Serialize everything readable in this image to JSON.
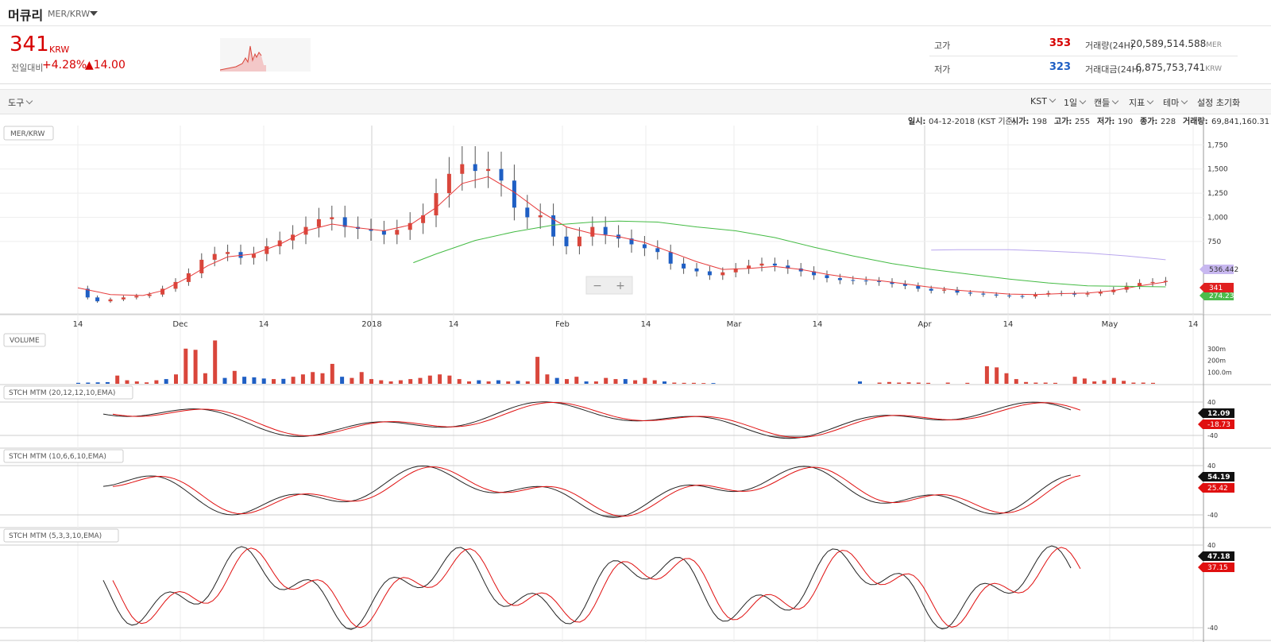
{
  "header": {
    "coin_name": "머큐리",
    "pair": "MER/KRW"
  },
  "ticker": {
    "price": "341",
    "unit": "KRW",
    "change_label": "전일대비",
    "change_pct": "+4.28%",
    "change_amt": "▲14.00",
    "high_label": "고가",
    "high": "353",
    "low_label": "저가",
    "low": "323",
    "vol_label": "거래량(24H)",
    "vol": "20,589,514.588",
    "vol_unit": "MER",
    "amt_label": "거래대금(24H)",
    "amt": "6,875,753,741",
    "amt_unit": "KRW"
  },
  "toolbar": {
    "tools": "도구",
    "items": [
      "KST",
      "1일",
      "캔들",
      "지표",
      "테마",
      "설정 초기화"
    ]
  },
  "info_line": {
    "date_label": "일시:",
    "date": "04-12-2018 (KST 기준)",
    "open_label": "시가:",
    "open": "198",
    "high_label": "고가:",
    "high": "255",
    "low_label": "저가:",
    "low": "190",
    "close_label": "종가:",
    "close": "228",
    "vol_label": "거래량:",
    "vol": "69,841,160.31"
  },
  "colors": {
    "up": "#d9463b",
    "down": "#1f5fc4",
    "ma_short": "#e63b3b",
    "ma_long": "#44bb44",
    "ma_xlong": "#b9a6ee",
    "stoch_main": "#222222",
    "stoch_signal": "#e01010"
  },
  "chart_data": {
    "type": "candlestick",
    "pair_label": "MER/KRW",
    "x_ticks": [
      "14",
      "Dec",
      "14",
      "2018",
      "14",
      "Feb",
      "14",
      "Mar",
      "14",
      "Apr",
      "14",
      "May",
      "14"
    ],
    "y_ticks": [
      "1,750",
      "1,500",
      "1,250",
      "1,000",
      "750"
    ],
    "price_tags": {
      "last": "341",
      "ma_green": "274.233",
      "ma_purple": "536.442"
    },
    "close_path": [
      [
        0,
        260
      ],
      [
        3,
        170
      ],
      [
        6,
        130
      ],
      [
        10,
        150
      ],
      [
        14,
        170
      ],
      [
        18,
        185
      ],
      [
        22,
        200
      ],
      [
        26,
        260
      ],
      [
        30,
        330
      ],
      [
        34,
        420
      ],
      [
        38,
        560
      ],
      [
        42,
        620
      ],
      [
        46,
        640
      ],
      [
        50,
        580
      ],
      [
        54,
        620
      ],
      [
        58,
        700
      ],
      [
        62,
        760
      ],
      [
        66,
        820
      ],
      [
        70,
        900
      ],
      [
        74,
        980
      ],
      [
        78,
        1000
      ],
      [
        82,
        900
      ],
      [
        86,
        880
      ],
      [
        90,
        860
      ],
      [
        94,
        820
      ],
      [
        98,
        870
      ],
      [
        102,
        940
      ],
      [
        106,
        1020
      ],
      [
        110,
        1250
      ],
      [
        114,
        1450
      ],
      [
        118,
        1550
      ],
      [
        122,
        1480
      ],
      [
        126,
        1500
      ],
      [
        130,
        1380
      ],
      [
        134,
        1100
      ],
      [
        138,
        1000
      ],
      [
        142,
        1020
      ],
      [
        146,
        800
      ],
      [
        150,
        700
      ],
      [
        154,
        800
      ],
      [
        158,
        900
      ],
      [
        162,
        820
      ],
      [
        166,
        780
      ],
      [
        170,
        720
      ],
      [
        174,
        680
      ],
      [
        178,
        640
      ],
      [
        182,
        520
      ],
      [
        186,
        470
      ],
      [
        190,
        440
      ],
      [
        194,
        400
      ],
      [
        198,
        430
      ],
      [
        202,
        470
      ],
      [
        206,
        500
      ],
      [
        210,
        520
      ],
      [
        214,
        500
      ],
      [
        218,
        470
      ],
      [
        222,
        440
      ],
      [
        226,
        400
      ],
      [
        230,
        370
      ],
      [
        234,
        350
      ],
      [
        238,
        345
      ],
      [
        242,
        340
      ],
      [
        246,
        330
      ],
      [
        250,
        310
      ],
      [
        254,
        290
      ],
      [
        258,
        260
      ],
      [
        262,
        240
      ],
      [
        266,
        250
      ],
      [
        270,
        220
      ],
      [
        274,
        210
      ],
      [
        278,
        200
      ],
      [
        282,
        190
      ],
      [
        286,
        185
      ],
      [
        290,
        180
      ],
      [
        294,
        200
      ],
      [
        298,
        215
      ],
      [
        302,
        210
      ],
      [
        306,
        200
      ],
      [
        310,
        210
      ],
      [
        314,
        225
      ],
      [
        318,
        250
      ],
      [
        322,
        290
      ],
      [
        326,
        320
      ],
      [
        330,
        330
      ],
      [
        334,
        341
      ]
    ],
    "ma_short_path": [
      [
        0,
        270
      ],
      [
        10,
        200
      ],
      [
        20,
        190
      ],
      [
        26,
        240
      ],
      [
        34,
        380
      ],
      [
        40,
        500
      ],
      [
        46,
        590
      ],
      [
        54,
        620
      ],
      [
        62,
        720
      ],
      [
        70,
        860
      ],
      [
        78,
        930
      ],
      [
        86,
        890
      ],
      [
        94,
        860
      ],
      [
        102,
        920
      ],
      [
        110,
        1100
      ],
      [
        118,
        1350
      ],
      [
        126,
        1420
      ],
      [
        134,
        1260
      ],
      [
        142,
        1060
      ],
      [
        150,
        900
      ],
      [
        158,
        830
      ],
      [
        166,
        800
      ],
      [
        174,
        740
      ],
      [
        182,
        640
      ],
      [
        190,
        540
      ],
      [
        198,
        460
      ],
      [
        206,
        470
      ],
      [
        214,
        490
      ],
      [
        222,
        460
      ],
      [
        230,
        410
      ],
      [
        238,
        370
      ],
      [
        246,
        345
      ],
      [
        254,
        310
      ],
      [
        262,
        275
      ],
      [
        270,
        245
      ],
      [
        278,
        225
      ],
      [
        286,
        205
      ],
      [
        294,
        200
      ],
      [
        302,
        210
      ],
      [
        310,
        215
      ],
      [
        318,
        240
      ],
      [
        326,
        290
      ],
      [
        334,
        330
      ]
    ],
    "ma_long_path": [
      [
        103,
        530
      ],
      [
        110,
        620
      ],
      [
        122,
        760
      ],
      [
        134,
        850
      ],
      [
        146,
        920
      ],
      [
        158,
        950
      ],
      [
        166,
        960
      ],
      [
        178,
        950
      ],
      [
        190,
        900
      ],
      [
        202,
        860
      ],
      [
        214,
        790
      ],
      [
        226,
        690
      ],
      [
        238,
        600
      ],
      [
        250,
        520
      ],
      [
        262,
        460
      ],
      [
        274,
        410
      ],
      [
        286,
        360
      ],
      [
        298,
        320
      ],
      [
        310,
        290
      ],
      [
        322,
        285
      ],
      [
        334,
        280
      ]
    ],
    "ma_xlong_path": [
      [
        262,
        660
      ],
      [
        270,
        665
      ],
      [
        286,
        665
      ],
      [
        298,
        650
      ],
      [
        310,
        630
      ],
      [
        322,
        600
      ],
      [
        334,
        560
      ]
    ],
    "volume": {
      "label": "VOLUME",
      "y_ticks": [
        "300m",
        "200m",
        "100.0m"
      ],
      "bars": [
        [
          0,
          8,
          0
        ],
        [
          2,
          10,
          0
        ],
        [
          4,
          12,
          0
        ],
        [
          6,
          14,
          0
        ],
        [
          8,
          70,
          1
        ],
        [
          10,
          30,
          1
        ],
        [
          12,
          20,
          1
        ],
        [
          14,
          12,
          1
        ],
        [
          16,
          30,
          1
        ],
        [
          18,
          40,
          0
        ],
        [
          20,
          80,
          1
        ],
        [
          22,
          300,
          1
        ],
        [
          24,
          290,
          1
        ],
        [
          26,
          90,
          1
        ],
        [
          28,
          370,
          1
        ],
        [
          30,
          50,
          0
        ],
        [
          32,
          110,
          1
        ],
        [
          34,
          60,
          0
        ],
        [
          36,
          55,
          0
        ],
        [
          38,
          45,
          0
        ],
        [
          40,
          40,
          1
        ],
        [
          42,
          42,
          0
        ],
        [
          44,
          60,
          1
        ],
        [
          46,
          80,
          1
        ],
        [
          48,
          100,
          1
        ],
        [
          50,
          90,
          1
        ],
        [
          52,
          170,
          1
        ],
        [
          54,
          60,
          0
        ],
        [
          56,
          50,
          1
        ],
        [
          58,
          100,
          1
        ],
        [
          60,
          40,
          1
        ],
        [
          62,
          30,
          1
        ],
        [
          64,
          20,
          1
        ],
        [
          66,
          30,
          1
        ],
        [
          68,
          40,
          1
        ],
        [
          70,
          50,
          1
        ],
        [
          72,
          70,
          1
        ],
        [
          74,
          80,
          1
        ],
        [
          76,
          70,
          1
        ],
        [
          78,
          40,
          1
        ],
        [
          80,
          20,
          1
        ],
        [
          82,
          30,
          0
        ],
        [
          84,
          20,
          1
        ],
        [
          86,
          30,
          0
        ],
        [
          88,
          20,
          1
        ],
        [
          90,
          25,
          0
        ],
        [
          92,
          20,
          1
        ],
        [
          94,
          230,
          1
        ],
        [
          96,
          80,
          1
        ],
        [
          98,
          50,
          0
        ],
        [
          100,
          40,
          1
        ],
        [
          102,
          60,
          1
        ],
        [
          104,
          20,
          0
        ],
        [
          106,
          20,
          1
        ],
        [
          108,
          50,
          1
        ],
        [
          110,
          40,
          1
        ],
        [
          112,
          40,
          0
        ],
        [
          114,
          30,
          1
        ],
        [
          116,
          50,
          1
        ],
        [
          118,
          30,
          1
        ],
        [
          120,
          20,
          0
        ],
        [
          122,
          10,
          1
        ],
        [
          124,
          8,
          1
        ],
        [
          126,
          8,
          1
        ],
        [
          128,
          6,
          1
        ],
        [
          130,
          6,
          0
        ],
        [
          160,
          20,
          0
        ],
        [
          164,
          10,
          1
        ],
        [
          166,
          15,
          1
        ],
        [
          168,
          10,
          1
        ],
        [
          170,
          12,
          1
        ],
        [
          172,
          10,
          1
        ],
        [
          174,
          8,
          1
        ],
        [
          178,
          10,
          1
        ],
        [
          182,
          8,
          1
        ],
        [
          186,
          150,
          1
        ],
        [
          188,
          140,
          1
        ],
        [
          190,
          90,
          1
        ],
        [
          192,
          40,
          1
        ],
        [
          194,
          15,
          1
        ],
        [
          196,
          10,
          1
        ],
        [
          198,
          10,
          1
        ],
        [
          200,
          8,
          1
        ],
        [
          204,
          60,
          1
        ],
        [
          206,
          45,
          1
        ],
        [
          208,
          20,
          1
        ],
        [
          210,
          30,
          1
        ],
        [
          212,
          50,
          1
        ],
        [
          214,
          25,
          1
        ],
        [
          216,
          10,
          1
        ],
        [
          218,
          10,
          1
        ],
        [
          220,
          8,
          1
        ]
      ]
    },
    "stoch_panels": [
      {
        "label": "STCH MTM (20,12,12,10,EMA)",
        "tick": "40",
        "tick2": "-40",
        "tag_main": "12.09",
        "tag_signal": "-18.73"
      },
      {
        "label": "STCH MTM (10,6,6,10,EMA)",
        "tick": "40",
        "tick2": "-40",
        "tag_main": "54.19",
        "tag_signal": "25.42"
      },
      {
        "label": "STCH MTM (5,3,3,10,EMA)",
        "tick": "40",
        "tick2": "-40",
        "tag_main": "47.18",
        "tag_signal": "37.15"
      }
    ]
  }
}
